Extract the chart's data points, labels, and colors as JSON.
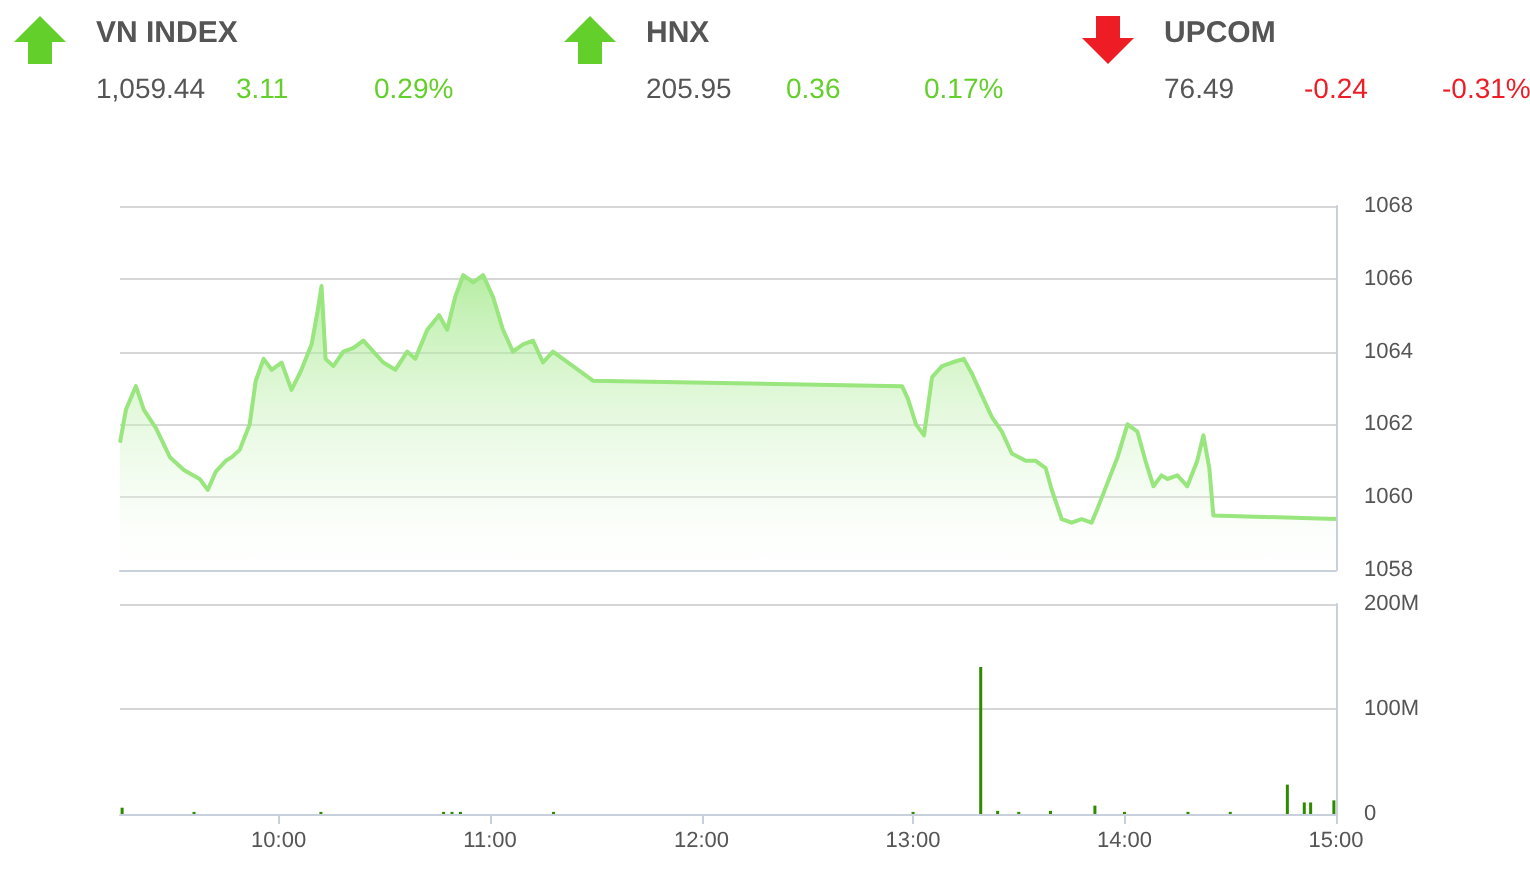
{
  "chart_data": [
    {
      "type": "other",
      "categories": [
        "VN INDEX",
        "HNX",
        "UPCOM"
      ],
      "values": [
        3.11,
        0.36,
        -0.24
      ],
      "data_labels": true,
      "colors": [
        "#63cf2a",
        "#63cf2a",
        "#ee1c25"
      ],
      "annotations": [
        "1,059.44",
        "0.29%",
        "205.95",
        "0.17%",
        "76.49",
        "-0.31%"
      ]
    },
    {
      "type": "area",
      "x": [
        9.25,
        9.278,
        9.325,
        9.363,
        9.42,
        9.486,
        9.552,
        9.627,
        9.665,
        9.703,
        9.75,
        9.778,
        9.816,
        9.863,
        9.892,
        9.929,
        9.967,
        10.014,
        10.061,
        10.108,
        10.156,
        10.184,
        10.203,
        10.222,
        10.259,
        10.306,
        10.354,
        10.401,
        10.448,
        10.495,
        10.552,
        10.608,
        10.646,
        10.703,
        10.759,
        10.797,
        10.835,
        10.873,
        10.92,
        10.967,
        11.014,
        11.061,
        11.108,
        11.156,
        11.203,
        11.25,
        11.297,
        11.392,
        11.486,
        12.948,
        12.976,
        13.014,
        13.052,
        13.09,
        13.137,
        13.184,
        13.24,
        13.278,
        13.325,
        13.373,
        13.42,
        13.467,
        13.533,
        13.58,
        13.627,
        13.656,
        13.703,
        13.75,
        13.797,
        13.844,
        13.873,
        13.92,
        13.967,
        14.014,
        14.061,
        14.099,
        14.137,
        14.175,
        14.203,
        14.25,
        14.297,
        14.344,
        14.373,
        14.401,
        14.42,
        15.0
      ],
      "values": [
        1061.5,
        1062.4,
        1063.05,
        1062.4,
        1061.9,
        1061.1,
        1060.75,
        1060.5,
        1060.2,
        1060.7,
        1061.0,
        1061.1,
        1061.3,
        1062.0,
        1063.2,
        1063.8,
        1063.5,
        1063.7,
        1062.95,
        1063.5,
        1064.2,
        1065.1,
        1065.8,
        1063.8,
        1063.6,
        1064.0,
        1064.1,
        1064.3,
        1064.0,
        1063.7,
        1063.5,
        1064.0,
        1063.8,
        1064.6,
        1065.0,
        1064.6,
        1065.5,
        1066.1,
        1065.9,
        1066.1,
        1065.5,
        1064.6,
        1064.0,
        1064.2,
        1064.3,
        1063.7,
        1064.0,
        1063.6,
        1063.2,
        1063.05,
        1062.7,
        1062.0,
        1061.7,
        1063.3,
        1063.6,
        1063.7,
        1063.8,
        1063.4,
        1062.8,
        1062.2,
        1061.8,
        1061.2,
        1061.0,
        1061.0,
        1060.8,
        1060.2,
        1059.4,
        1059.3,
        1059.4,
        1059.3,
        1059.7,
        1060.4,
        1061.1,
        1062.0,
        1061.8,
        1061.0,
        1060.3,
        1060.6,
        1060.5,
        1060.6,
        1060.3,
        1061.0,
        1061.7,
        1060.8,
        1059.5,
        1059.4
      ],
      "color": "#98e67d",
      "xlim": [
        9.25,
        15
      ],
      "ylim": [
        1058,
        1068
      ],
      "yticks": [
        1058,
        1060,
        1062,
        1064,
        1066,
        1068
      ],
      "grid": "y",
      "tick_labels": "y"
    },
    {
      "type": "bar",
      "x": [
        9.26,
        9.6,
        10.2,
        10.78,
        10.82,
        10.86,
        11.3,
        13.0,
        13.32,
        13.4,
        13.5,
        13.65,
        13.86,
        14.0,
        14.3,
        14.5,
        14.77,
        14.85,
        14.88,
        14.99
      ],
      "values": [
        6,
        2,
        2,
        2,
        2,
        2,
        2,
        2,
        140,
        3,
        2,
        3,
        8,
        2,
        2,
        2,
        28,
        11,
        11,
        13
      ],
      "color": "#2e8b00",
      "xlim": [
        9.25,
        15
      ],
      "xticks": [
        {
          "value": 10,
          "label": "10:00"
        },
        {
          "value": 11,
          "label": "11:00"
        },
        {
          "value": 12,
          "label": "12:00"
        },
        {
          "value": 13,
          "label": "13:00"
        },
        {
          "value": 14,
          "label": "14:00"
        },
        {
          "value": 15,
          "label": "15:00"
        }
      ],
      "ylim": [
        0,
        200
      ],
      "yticks": [
        0,
        {
          "value": 100,
          "label": "100M"
        },
        {
          "value": 200,
          "label": "200M"
        }
      ],
      "grid": "y"
    }
  ]
}
